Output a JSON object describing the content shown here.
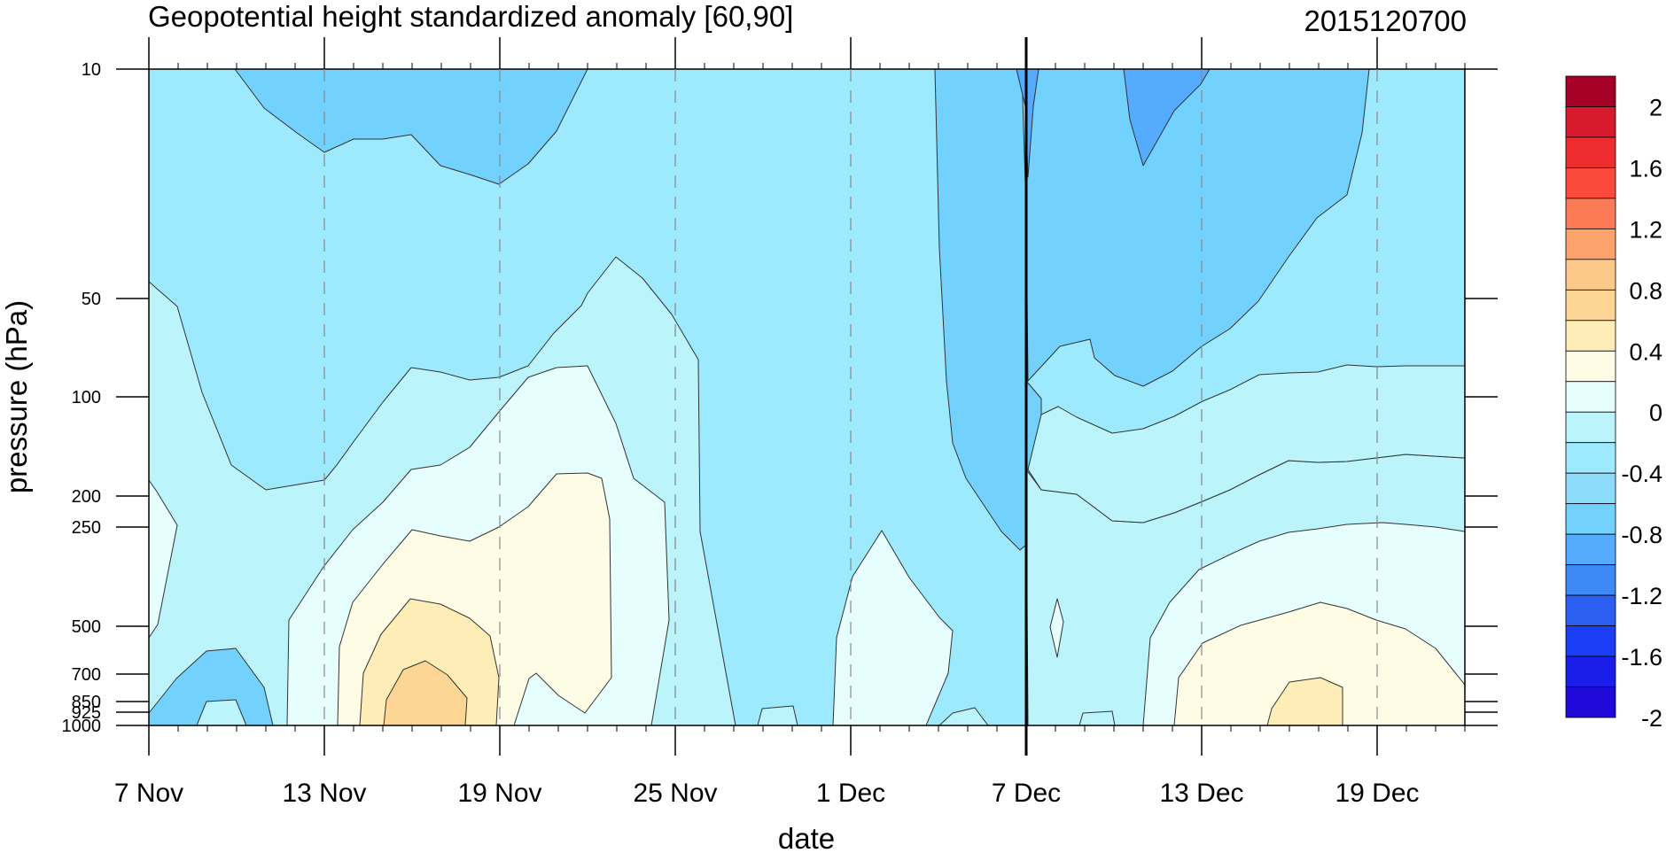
{
  "chart_data": {
    "type": "heatmap",
    "subtype": "filled-contour time-pressure cross-section",
    "title": "Geopotential height standardized anomaly [60,90]",
    "run_label": "2015120700",
    "xlabel": "date",
    "ylabel": "pressure (hPa)",
    "x_ticks": [
      "7 Nov",
      "13 Nov",
      "19 Nov",
      "25 Nov",
      "1 Dec",
      "7 Dec",
      "13 Dec",
      "19 Dec"
    ],
    "x_tick_days": [
      0,
      6,
      12,
      18,
      24,
      30,
      36,
      42
    ],
    "x_range_days": [
      0,
      45
    ],
    "y_ticks": [
      "10",
      "50",
      "100",
      "200",
      "250",
      "500",
      "700",
      "850",
      "925",
      "1000"
    ],
    "y_tick_values": [
      10,
      50,
      100,
      200,
      250,
      500,
      700,
      850,
      925,
      1000
    ],
    "y_axis": "pressure, inverted, custom spacing",
    "y_range": [
      10,
      1000
    ],
    "vertical_marker_day": 30,
    "vertical_marker_label": "7 Dec",
    "colorbar": {
      "labels": [
        "2",
        "1.6",
        "1.2",
        "0.8",
        "0.4",
        "0",
        "-0.4",
        "-0.8",
        "-1.2",
        "-1.6",
        "-2"
      ],
      "colors": [
        "#a50026",
        "#d7192e",
        "#ec2c2f",
        "#fb4a3c",
        "#fc7a56",
        "#fca36b",
        "#fdc98b",
        "#fdd696",
        "#feedb7",
        "#fffce6",
        "#e6fffe",
        "#bbf4fb",
        "#9de9fd",
        "#8ddcfb",
        "#72d1fd",
        "#55abfe",
        "#3d89f6",
        "#2a5ff2",
        "#1a3ef3",
        "#1b1de9",
        "#2009d8"
      ]
    },
    "regions": [
      {
        "name": "base-anomaly",
        "level": -0.6,
        "color": "#9de9fd"
      },
      {
        "name": "upper-negative-early-nov",
        "level": -0.8,
        "color": "#72d1fd"
      },
      {
        "name": "upper-negative-early-dec",
        "level": -0.8,
        "color": "#72d1fd"
      },
      {
        "name": "upper-core-7-dec",
        "level": -1.0,
        "color": "#55abfe"
      },
      {
        "name": "upper-core-12-dec",
        "level": -1.0,
        "color": "#55abfe"
      },
      {
        "name": "lower-mid-nov",
        "level": -0.4,
        "color": "#bbf4fb"
      },
      {
        "name": "lower-mid-nov-inner",
        "level": -0.2,
        "color": "#e6fffe"
      },
      {
        "name": "lower-mid-nov-positive",
        "level": 0.2,
        "color": "#fffce6"
      },
      {
        "name": "lower-mid-nov-0.4",
        "level": 0.4,
        "color": "#feedb7"
      },
      {
        "name": "lower-mid-nov-0.6",
        "level": 0.6,
        "color": "#fdd696"
      },
      {
        "name": "lower-dec",
        "level": -0.4,
        "color": "#bbf4fb"
      },
      {
        "name": "lower-dec-inner",
        "level": -0.2,
        "color": "#e6fffe"
      },
      {
        "name": "lower-dec-positive",
        "level": 0.2,
        "color": "#fffce6"
      },
      {
        "name": "lower-dec-0.4",
        "level": 0.4,
        "color": "#feedb7"
      }
    ]
  }
}
